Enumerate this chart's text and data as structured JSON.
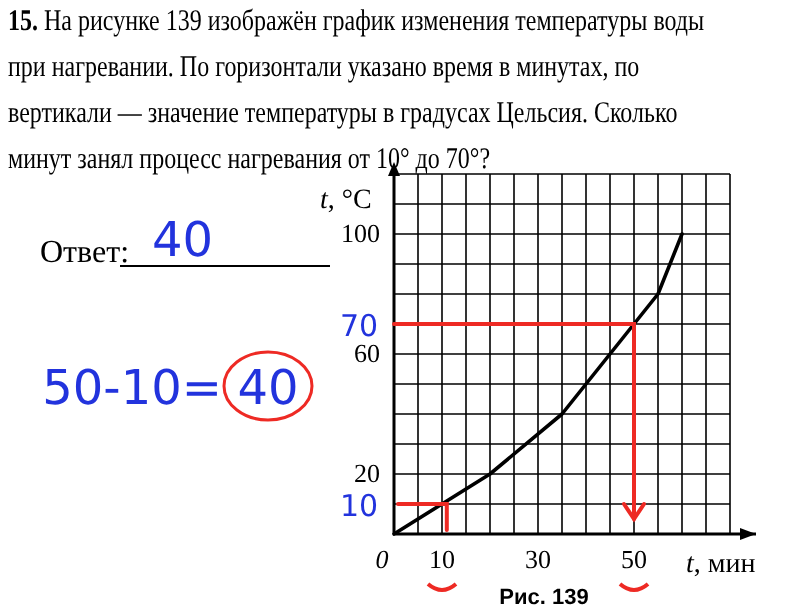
{
  "chart_data": {
    "type": "line",
    "title": "15. На рисунке 139 изображён график изменения температуры воды при нагревании. По горизонтали указано время в минутах, по вертикали — значение температуры в градусах Цельсия. Сколько минут занял процесс нагревания от 10° до 70°?",
    "xlabel": "t, мин",
    "ylabel": "t, °C",
    "x": [
      0,
      10,
      20,
      35,
      45,
      50,
      55,
      60
    ],
    "series": [
      {
        "color": "#000000",
        "values": [
          0,
          10,
          20,
          40,
          60,
          70,
          80,
          100
        ]
      }
    ],
    "xlim": [
      0,
      70
    ],
    "ylim": [
      0,
      120
    ],
    "xticks": [
      0,
      {
        "value": 5,
        "label": null
      },
      10,
      {
        "value": 15,
        "label": null
      },
      {
        "value": 20,
        "label": null
      },
      {
        "value": 25,
        "label": null
      },
      30,
      {
        "value": 35,
        "label": null
      },
      {
        "value": 40,
        "label": null
      },
      {
        "value": 45,
        "label": null
      },
      50,
      {
        "value": 55,
        "label": null
      },
      {
        "value": 60,
        "label": null
      },
      {
        "value": 65,
        "label": null
      },
      {
        "value": 70,
        "label": null
      }
    ],
    "yticks": [
      {
        "value": 0,
        "label": null
      },
      {
        "value": 10,
        "label": null
      },
      20,
      {
        "value": 30,
        "label": null
      },
      {
        "value": 40,
        "label": null
      },
      {
        "value": 50,
        "label": null
      },
      60,
      {
        "value": 70,
        "label": null
      },
      {
        "value": 80,
        "label": null
      },
      {
        "value": 90,
        "label": null
      },
      100,
      {
        "value": 110,
        "label": null
      },
      {
        "value": 120,
        "label": null
      }
    ],
    "grid": true,
    "marker": "none",
    "line_style": "solid",
    "annotations": [
      "Ответ:",
      "40",
      "50-10=",
      "40",
      "Рис. 139",
      "70",
      "10"
    ]
  }
}
